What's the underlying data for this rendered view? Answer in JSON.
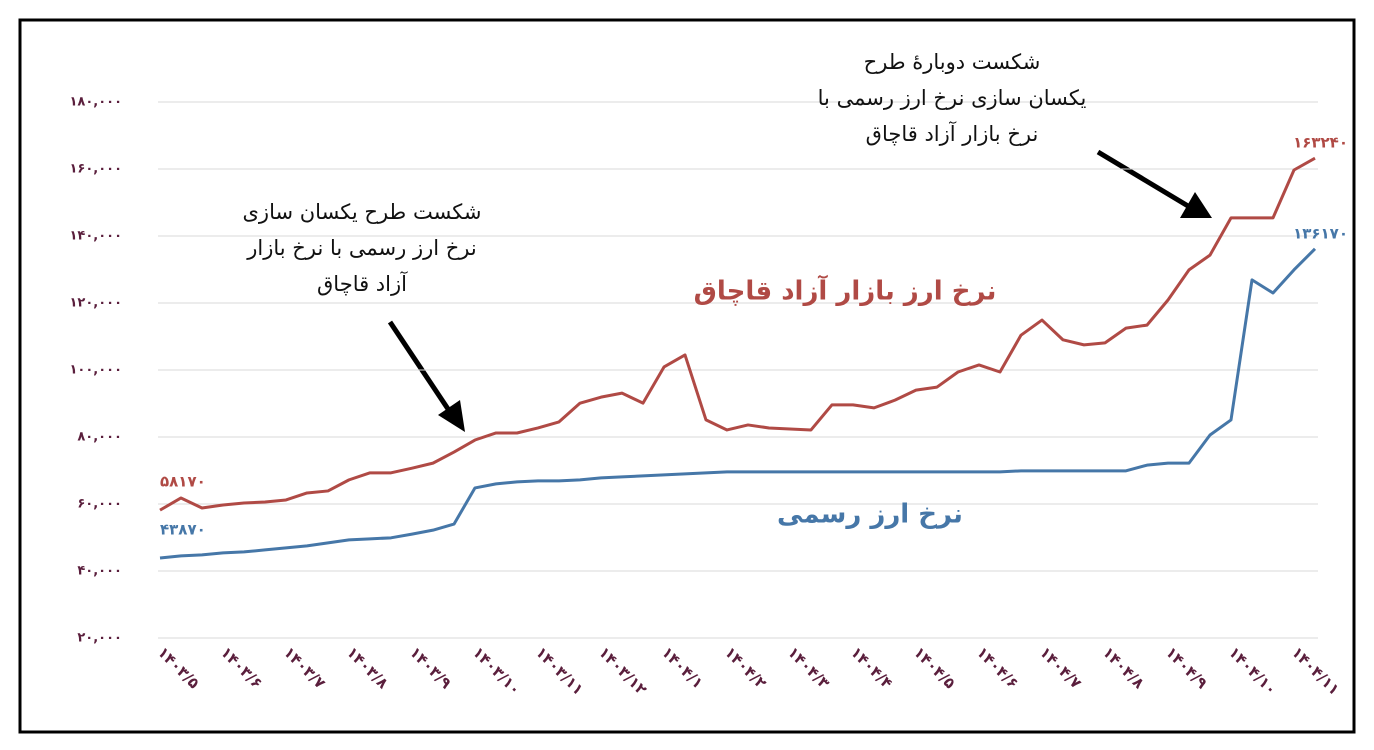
{
  "chart_data": {
    "type": "line",
    "categories": [
      "۱۴۰۳/۵",
      null,
      null,
      "۱۴۰۳/۶",
      null,
      null,
      "۱۴۰۳/۷",
      null,
      null,
      "۱۴۰۳/۸",
      null,
      null,
      "۱۴۰۳/۹",
      null,
      null,
      "۱۴۰۳/۱۰",
      null,
      null,
      "۱۴۰۳/۱۱",
      null,
      null,
      "۱۴۰۳/۱۲",
      null,
      null,
      "۱۴۰۴/۱",
      null,
      null,
      "۱۴۰۴/۲",
      null,
      null,
      "۱۴۰۴/۳",
      null,
      null,
      "۱۴۰۴/۴",
      null,
      null,
      "۱۴۰۴/۵",
      null,
      null,
      "۱۴۰۴/۶",
      null,
      null,
      "۱۴۰۴/۷",
      null,
      null,
      "۱۴۰۴/۸",
      null,
      null,
      "۱۴۰۴/۹",
      null,
      null,
      "۱۴۰۴/۱۰",
      null,
      null,
      "۱۴۰۴/۱۱",
      null
    ],
    "series": [
      {
        "name": "نرخ ارز بازار آزاد قاچاق",
        "color": "#b04a45",
        "values": [
          58170,
          61800,
          58800,
          59700,
          60300,
          60600,
          61200,
          63300,
          63900,
          67200,
          69300,
          69300,
          70700,
          72200,
          75500,
          79100,
          81200,
          81200,
          82700,
          84500,
          90100,
          91900,
          93100,
          90100,
          100900,
          104500,
          85100,
          82100,
          83600,
          82700,
          82400,
          82100,
          89600,
          89600,
          88700,
          91000,
          94000,
          94900,
          99400,
          101500,
          99400,
          110400,
          114900,
          109000,
          107500,
          108100,
          112500,
          113400,
          120900,
          129900,
          134300,
          145400,
          145400,
          145400,
          159700,
          163240
        ],
        "value_labels": [
          "۵۸۱۷۰",
          null,
          null,
          null,
          null,
          null,
          null,
          null,
          null,
          null,
          null,
          null,
          null,
          null,
          null,
          null,
          null,
          null,
          null,
          null,
          null,
          null,
          null,
          null,
          null,
          null,
          null,
          null,
          null,
          null,
          null,
          null,
          null,
          null,
          null,
          null,
          null,
          null,
          null,
          null,
          null,
          null,
          null,
          null,
          null,
          null,
          null,
          null,
          null,
          null,
          null,
          null,
          null,
          null,
          null,
          "۱۶۳۲۴۰"
        ]
      },
      {
        "name": "نرخ ارز رسمی",
        "color": "#4677a8",
        "values": [
          43870,
          44500,
          44800,
          45400,
          45700,
          46300,
          46900,
          47500,
          48400,
          49300,
          49600,
          49900,
          51000,
          52200,
          54000,
          64800,
          66000,
          66600,
          66900,
          66900,
          67200,
          67800,
          68100,
          68400,
          68700,
          69000,
          69300,
          69600,
          69600,
          69600,
          69600,
          69600,
          69600,
          69600,
          69600,
          69600,
          69600,
          69600,
          69600,
          69600,
          69600,
          69900,
          69900,
          69900,
          69900,
          69900,
          69900,
          71600,
          72200,
          72200,
          80600,
          85100,
          126900,
          123000,
          129900,
          136170
        ],
        "value_labels": [
          "۴۳۸۷۰",
          null,
          null,
          null,
          null,
          null,
          null,
          null,
          null,
          null,
          null,
          null,
          null,
          null,
          null,
          null,
          null,
          null,
          null,
          null,
          null,
          null,
          null,
          null,
          null,
          null,
          null,
          null,
          null,
          null,
          null,
          null,
          null,
          null,
          null,
          null,
          null,
          null,
          null,
          null,
          null,
          null,
          null,
          null,
          null,
          null,
          null,
          null,
          null,
          null,
          null,
          null,
          null,
          null,
          null,
          "۱۳۶۱۷۰"
        ]
      }
    ],
    "ylim": [
      20000,
      180000
    ],
    "yticks": [
      {
        "value": 20000,
        "label": "۲۰,۰۰۰"
      },
      {
        "value": 40000,
        "label": "۴۰,۰۰۰"
      },
      {
        "value": 60000,
        "label": "۶۰,۰۰۰"
      },
      {
        "value": 80000,
        "label": "۸۰,۰۰۰"
      },
      {
        "value": 100000,
        "label": "۱۰۰,۰۰۰"
      },
      {
        "value": 120000,
        "label": "۱۲۰,۰۰۰"
      },
      {
        "value": 140000,
        "label": "۱۴۰,۰۰۰"
      },
      {
        "value": 160000,
        "label": "۱۶۰,۰۰۰"
      },
      {
        "value": 180000,
        "label": "۱۸۰,۰۰۰"
      }
    ],
    "grid": true,
    "annotations": [
      {
        "lines": [
          "شکست طرح یکسان سازی",
          "نرخ ارز رسمی با نرخ بازار",
          "آزاد قاچاق"
        ]
      },
      {
        "lines": [
          "شکست دوبارهٔ طرح",
          "یکسان سازی نرخ ارز رسمی با",
          "نرخ بازار آزاد قاچاق"
        ]
      }
    ]
  }
}
